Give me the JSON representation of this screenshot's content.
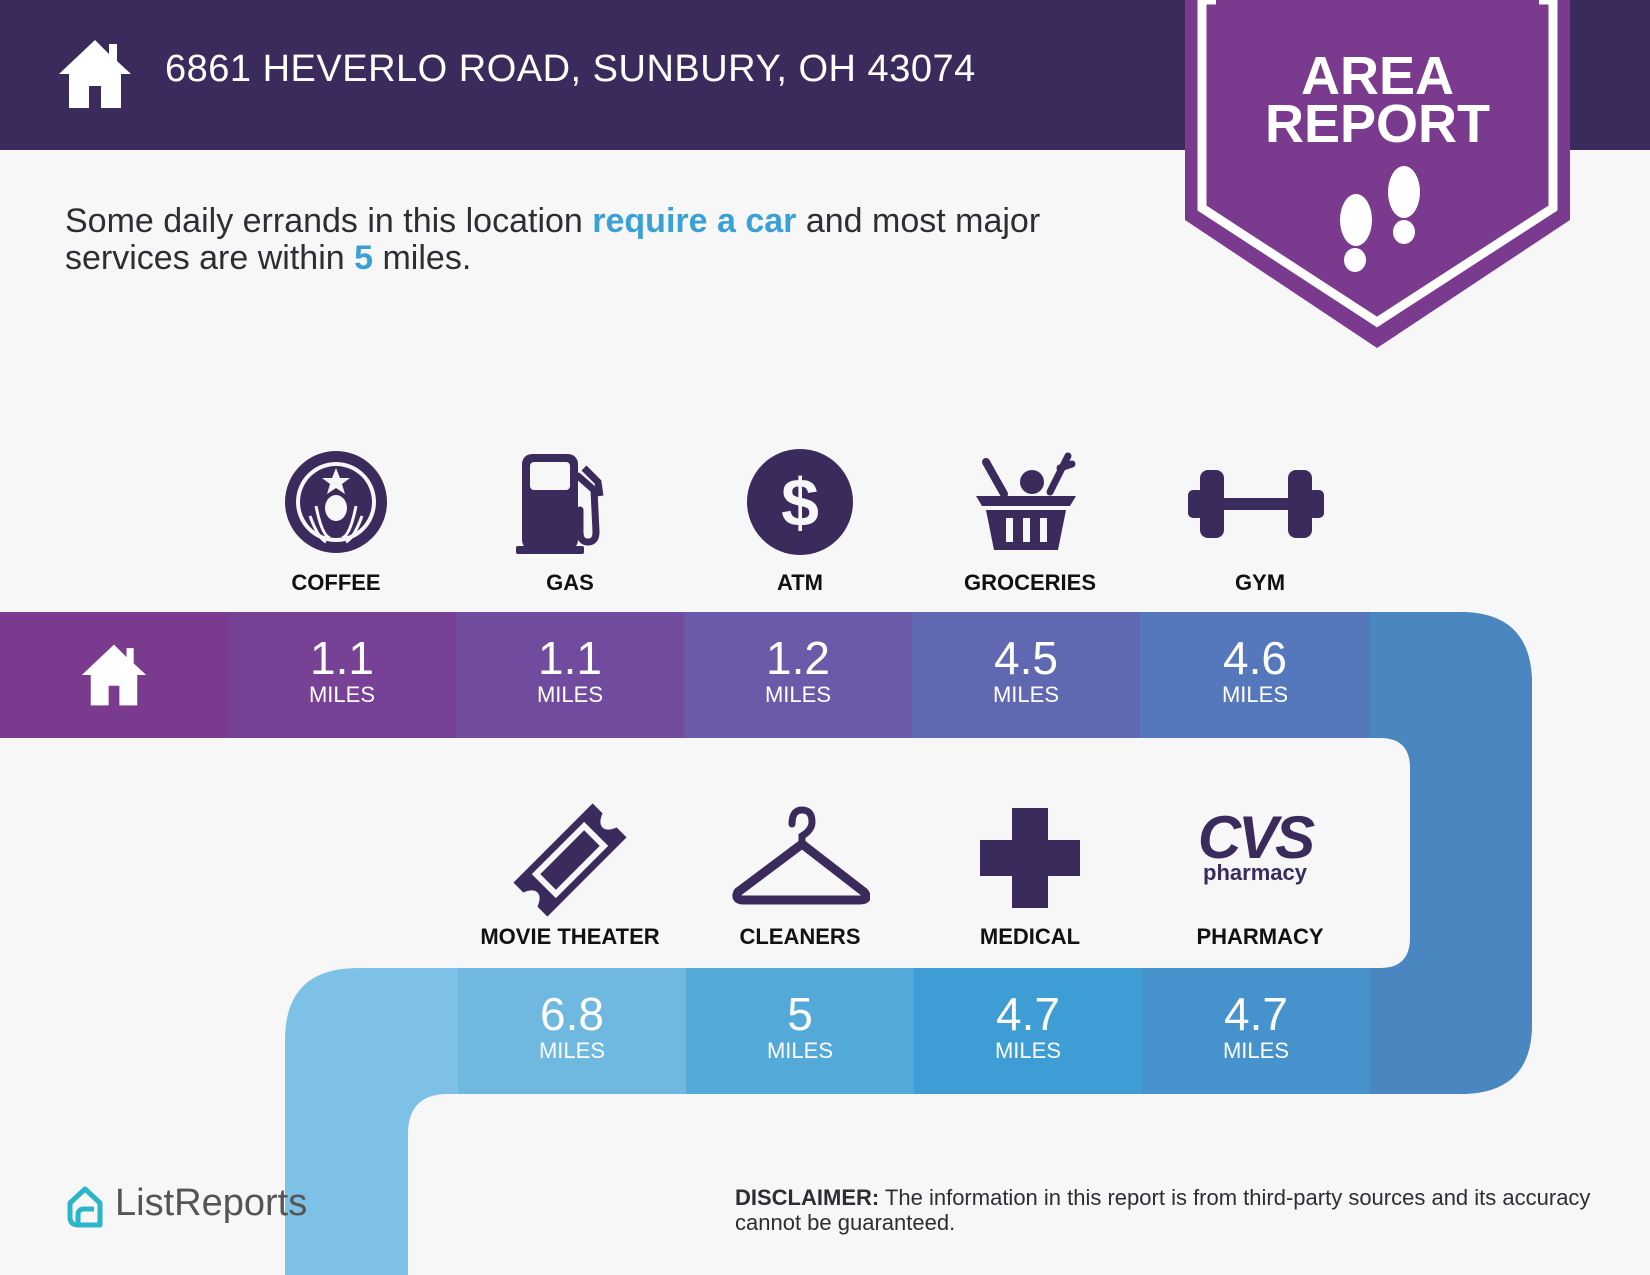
{
  "header": {
    "address": "6861 HEVERLO ROAD, SUNBURY, OH 43074",
    "badge_line1": "AREA",
    "badge_line2": "REPORT"
  },
  "intro": {
    "part1": "Some daily errands in this location ",
    "highlight": "require a car",
    "part2": " and most major services are within ",
    "miles": "5",
    "part3": " miles."
  },
  "unit_label": "MILES",
  "row1": [
    {
      "label": "COFFEE",
      "icon": "starbucks-logo",
      "distance": "1.1"
    },
    {
      "label": "GAS",
      "icon": "gas-pump-icon",
      "distance": "1.1"
    },
    {
      "label": "ATM",
      "icon": "dollar-icon",
      "distance": "1.2"
    },
    {
      "label": "GROCERIES",
      "icon": "basket-icon",
      "distance": "4.5"
    },
    {
      "label": "GYM",
      "icon": "dumbbell-icon",
      "distance": "4.6"
    }
  ],
  "row2": [
    {
      "label": "MOVIE THEATER",
      "icon": "ticket-icon",
      "distance": "6.8"
    },
    {
      "label": "CLEANERS",
      "icon": "hanger-icon",
      "distance": "5"
    },
    {
      "label": "MEDICAL",
      "icon": "cross-icon",
      "distance": "4.7"
    },
    {
      "label": "PHARMACY",
      "icon": "cvs-logo",
      "distance": "4.7"
    }
  ],
  "cvs": {
    "big": "CVS",
    "small": "pharmacy"
  },
  "footer": {
    "brand": "ListReports",
    "disclaimer_bold": "DISCLAIMER:",
    "disclaimer_text": " The information in this report is from third-party sources and its accuracy cannot be guaranteed."
  },
  "colors": {
    "header": "#3b2a5c",
    "badge": "#7a3a8e",
    "accent": "#3aa0d6",
    "icon": "#3b2a5c"
  }
}
